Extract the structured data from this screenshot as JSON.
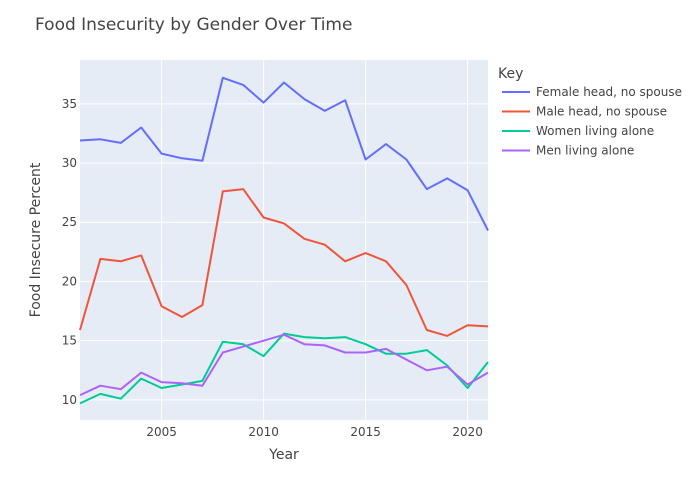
{
  "chart_data": {
    "type": "line",
    "title": "Food Insecurity by Gender Over Time",
    "xlabel": "Year",
    "ylabel": "Food Insecure Percent",
    "xlim": [
      2001,
      2021
    ],
    "ylim": [
      8.3,
      38.7
    ],
    "x_ticks": [
      2005,
      2010,
      2015,
      2020
    ],
    "y_ticks": [
      10,
      15,
      20,
      25,
      30,
      35
    ],
    "grid": true,
    "legend_title": "Key",
    "legend_position": "right",
    "x": [
      2001,
      2002,
      2003,
      2004,
      2005,
      2006,
      2007,
      2008,
      2009,
      2010,
      2011,
      2012,
      2013,
      2014,
      2015,
      2016,
      2017,
      2018,
      2019,
      2020,
      2021
    ],
    "series": [
      {
        "name": "Female head, no spouse",
        "color": "#636efa",
        "values": [
          31.9,
          32.0,
          31.7,
          33.0,
          30.8,
          30.4,
          30.2,
          37.2,
          36.6,
          35.1,
          36.8,
          35.4,
          34.4,
          35.3,
          30.3,
          31.6,
          30.3,
          27.8,
          28.7,
          27.7,
          24.3
        ]
      },
      {
        "name": "Male head, no spouse",
        "color": "#ef553b",
        "values": [
          15.9,
          21.9,
          21.7,
          22.2,
          17.9,
          17.0,
          18.0,
          27.6,
          27.8,
          25.4,
          24.9,
          23.6,
          23.1,
          21.7,
          22.4,
          21.7,
          19.7,
          15.9,
          15.4,
          16.3,
          16.2
        ]
      },
      {
        "name": "Women living alone",
        "color": "#00cc96",
        "values": [
          9.7,
          10.5,
          10.1,
          11.8,
          11.0,
          11.3,
          11.6,
          14.9,
          14.7,
          13.7,
          15.6,
          15.3,
          15.2,
          15.3,
          14.7,
          13.9,
          13.9,
          14.2,
          12.9,
          11.0,
          13.2
        ]
      },
      {
        "name": "Men living alone",
        "color": "#ab63fa",
        "values": [
          10.4,
          11.2,
          10.9,
          12.3,
          11.5,
          11.4,
          11.2,
          14.0,
          14.5,
          15.0,
          15.5,
          14.7,
          14.6,
          14.0,
          14.0,
          14.3,
          13.4,
          12.5,
          12.8,
          11.3,
          12.3
        ]
      }
    ]
  }
}
